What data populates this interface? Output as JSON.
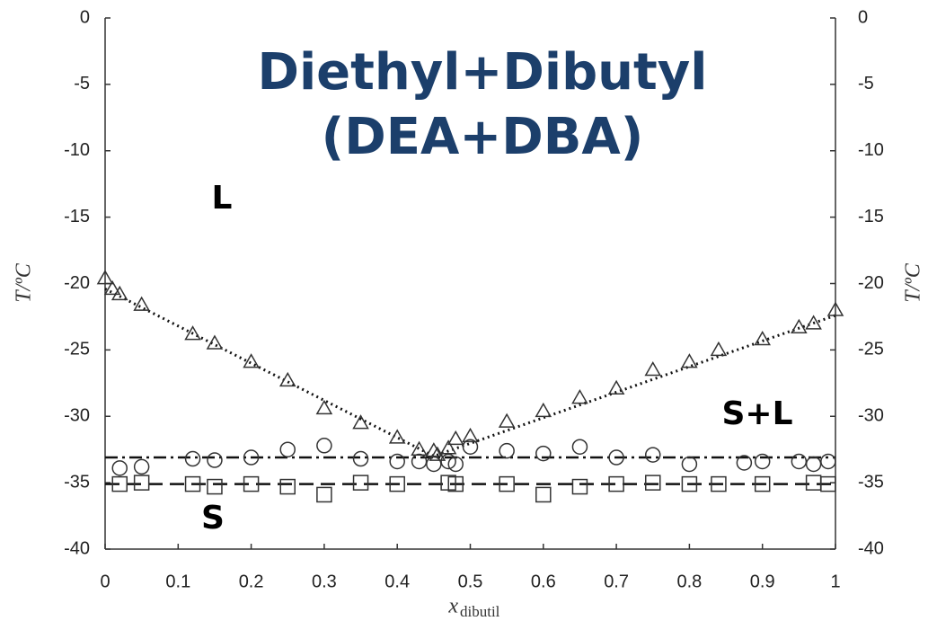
{
  "chart_data": {
    "type": "scatter",
    "title": [
      "Diethyl+Dibutyl",
      "(DEA+DBA)"
    ],
    "xlabel": "x",
    "xlabel_sub": "dibutil",
    "ylabel": "T/ºC",
    "y2label": "T/ºC",
    "annotations": [
      "L",
      "S+L",
      "S"
    ],
    "xlim": [
      0,
      1
    ],
    "xticks": [
      0,
      0.1,
      0.2,
      0.3,
      0.4,
      0.5,
      0.6,
      0.7,
      0.8,
      0.9,
      1
    ],
    "ylim": [
      -40,
      0
    ],
    "yticks": [
      0,
      -5,
      -10,
      -15,
      -20,
      -25,
      -30,
      -35,
      -40
    ],
    "y2lim": [
      -40,
      0
    ],
    "y2ticks": [
      0,
      -5,
      -10,
      -15,
      -20,
      -25,
      -30,
      -35,
      -40
    ],
    "color": "#333333",
    "series": [
      {
        "marker": "triangle",
        "x": [
          0,
          0.01,
          0.02,
          0.05,
          0.12,
          0.15,
          0.2,
          0.25,
          0.3,
          0.35,
          0.4,
          0.43,
          0.45,
          0.455,
          0.47,
          0.48,
          0.5,
          0.55,
          0.6,
          0.65,
          0.7,
          0.75,
          0.8,
          0.84,
          0.9,
          0.95,
          0.97,
          1
        ],
        "values": [
          -19.6,
          -20.4,
          -20.8,
          -21.6,
          -23.8,
          -24.5,
          -25.9,
          -27.3,
          -29.4,
          -30.5,
          -31.6,
          -32.5,
          -32.6,
          -32.9,
          -32.4,
          -31.7,
          -31.5,
          -30.4,
          -29.6,
          -28.6,
          -27.9,
          -26.5,
          -25.9,
          -25.0,
          -24.2,
          -23.3,
          -23.0,
          -22.0
        ]
      },
      {
        "marker": "circle",
        "x": [
          0.02,
          0.05,
          0.12,
          0.15,
          0.2,
          0.25,
          0.3,
          0.35,
          0.4,
          0.43,
          0.45,
          0.47,
          0.48,
          0.5,
          0.55,
          0.6,
          0.65,
          0.7,
          0.75,
          0.8,
          0.875,
          0.9,
          0.95,
          0.97,
          0.99
        ],
        "values": [
          -33.9,
          -33.8,
          -33.2,
          -33.3,
          -33.1,
          -32.5,
          -32.2,
          -33.2,
          -33.4,
          -33.4,
          -33.6,
          -33.4,
          -33.6,
          -32.3,
          -32.6,
          -32.8,
          -32.3,
          -33.1,
          -32.9,
          -33.6,
          -33.5,
          -33.4,
          -33.4,
          -33.6,
          -33.4
        ]
      },
      {
        "marker": "square",
        "x": [
          0.02,
          0.05,
          0.12,
          0.15,
          0.2,
          0.25,
          0.3,
          0.35,
          0.4,
          0.47,
          0.48,
          0.55,
          0.6,
          0.65,
          0.7,
          0.75,
          0.8,
          0.84,
          0.9,
          0.97,
          0.99
        ],
        "values": [
          -35.1,
          -35.0,
          -35.1,
          -35.3,
          -35.1,
          -35.3,
          -35.9,
          -35.0,
          -35.1,
          -35.0,
          -35.1,
          -35.1,
          -35.9,
          -35.3,
          -35.1,
          -35.0,
          -35.1,
          -35.1,
          -35.1,
          -35.0,
          -35.1
        ]
      }
    ],
    "lines": [
      {
        "style": "dotted",
        "x": [
          0,
          0.45,
          1
        ],
        "values": [
          -20.4,
          -33.0,
          -22.4
        ]
      },
      {
        "style": "dashdot",
        "x": [
          0,
          1
        ],
        "values": [
          -33.1,
          -33.1
        ]
      },
      {
        "style": "dashed",
        "x": [
          0,
          1
        ],
        "values": [
          -35.1,
          -35.1
        ]
      }
    ]
  }
}
